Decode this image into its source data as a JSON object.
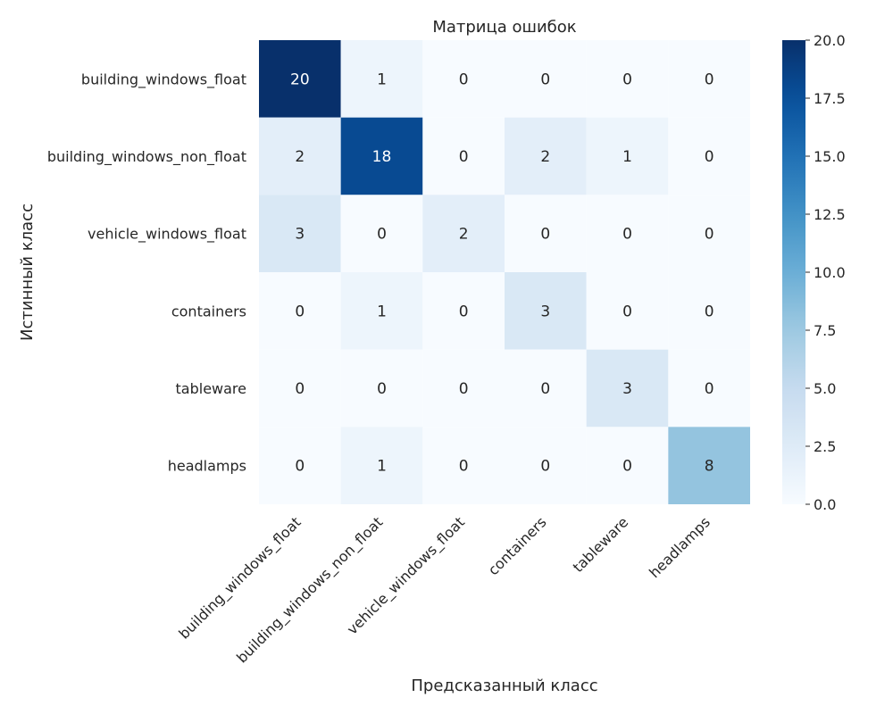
{
  "chart_data": {
    "type": "heatmap",
    "title": "Матрица ошибок",
    "xlabel": "Предсказанный класс",
    "ylabel": "Истинный класс",
    "x_categories": [
      "building_windows_float",
      "building_windows_non_float",
      "vehicle_windows_float",
      "containers",
      "tableware",
      "headlamps"
    ],
    "y_categories": [
      "building_windows_float",
      "building_windows_non_float",
      "vehicle_windows_float",
      "containers",
      "tableware",
      "headlamps"
    ],
    "values": [
      [
        20,
        1,
        0,
        0,
        0,
        0
      ],
      [
        2,
        18,
        0,
        2,
        1,
        0
      ],
      [
        3,
        0,
        2,
        0,
        0,
        0
      ],
      [
        0,
        1,
        0,
        3,
        0,
        0
      ],
      [
        0,
        0,
        0,
        0,
        3,
        0
      ],
      [
        0,
        1,
        0,
        0,
        0,
        8
      ]
    ],
    "colorbar": {
      "range": [
        0,
        20
      ],
      "ticks": [
        "0.0",
        "2.5",
        "5.0",
        "7.5",
        "10.0",
        "12.5",
        "15.0",
        "17.5",
        "20.0"
      ],
      "colormap": "Blues"
    }
  }
}
